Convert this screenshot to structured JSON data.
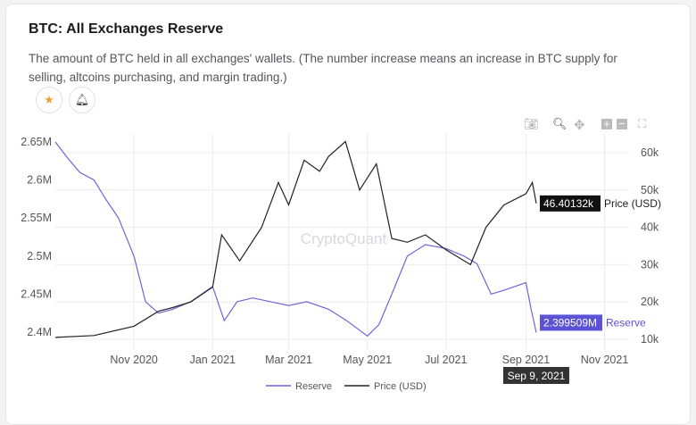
{
  "header": {
    "title": "BTC: All Exchanges Reserve",
    "description": "The amount of BTC held in all exchanges' wallets. (The number increase means an increase in BTC supply for selling, altcoins purchasing, and margin trading.)",
    "favorite_icon": "star-icon",
    "alert_icon": "bell-icon"
  },
  "toolbar": {
    "icons": [
      "camera-icon",
      "zoom-icon",
      "pan-icon",
      "zoom-in-icon",
      "zoom-out-icon",
      "autoscale-icon"
    ]
  },
  "watermark": "CryptoQuant",
  "chart_data": {
    "type": "line",
    "x_ticks": [
      "Nov 2020",
      "Jan 2021",
      "Mar 2021",
      "May 2021",
      "Jul 2021",
      "Sep 2021",
      "Nov 2021"
    ],
    "x_tick_dates": [
      "2020-11-01",
      "2021-01-01",
      "2021-03-01",
      "2021-05-01",
      "2021-07-01",
      "2021-09-01",
      "2021-11-01"
    ],
    "xlim": [
      "2020-09-01",
      "2021-11-20"
    ],
    "y_left": {
      "ticks": [
        "2.4M",
        "2.45M",
        "2.5M",
        "2.55M",
        "2.6M",
        "2.65M"
      ],
      "values": [
        2.4,
        2.45,
        2.5,
        2.55,
        2.6,
        2.65
      ],
      "unit": "M",
      "range": [
        2.385,
        2.655
      ]
    },
    "y_right": {
      "ticks": [
        "10k",
        "20k",
        "30k",
        "40k",
        "50k",
        "60k"
      ],
      "values": [
        10,
        20,
        30,
        40,
        50,
        60
      ],
      "unit": "k",
      "range": [
        8,
        66
      ]
    },
    "grid": true,
    "legend_position": "bottom",
    "series": [
      {
        "name": "Reserve",
        "axis": "left",
        "color": "#6f66d8",
        "x": [
          "2020-09-01",
          "2020-09-10",
          "2020-09-20",
          "2020-10-01",
          "2020-10-10",
          "2020-10-20",
          "2020-11-01",
          "2020-11-10",
          "2020-11-20",
          "2020-12-01",
          "2020-12-15",
          "2021-01-01",
          "2021-01-10",
          "2021-01-20",
          "2021-02-01",
          "2021-02-15",
          "2021-03-01",
          "2021-03-15",
          "2021-04-01",
          "2021-04-15",
          "2021-05-01",
          "2021-05-10",
          "2021-05-20",
          "2021-06-01",
          "2021-06-15",
          "2021-07-01",
          "2021-07-15",
          "2021-07-25",
          "2021-08-05",
          "2021-08-15",
          "2021-09-01",
          "2021-09-05",
          "2021-09-09"
        ],
        "values": [
          2.65,
          2.63,
          2.61,
          2.6,
          2.575,
          2.55,
          2.5,
          2.44,
          2.425,
          2.43,
          2.44,
          2.46,
          2.415,
          2.44,
          2.445,
          2.44,
          2.435,
          2.44,
          2.43,
          2.415,
          2.395,
          2.41,
          2.45,
          2.5,
          2.515,
          2.51,
          2.5,
          2.49,
          2.45,
          2.455,
          2.465,
          2.43,
          2.3995
        ]
      },
      {
        "name": "Price (USD)",
        "axis": "right",
        "color": "#222222",
        "x": [
          "2020-09-01",
          "2020-10-01",
          "2020-11-01",
          "2020-11-20",
          "2020-12-01",
          "2020-12-15",
          "2021-01-01",
          "2021-01-08",
          "2021-01-22",
          "2021-02-08",
          "2021-02-21",
          "2021-03-01",
          "2021-03-13",
          "2021-03-25",
          "2021-04-01",
          "2021-04-14",
          "2021-04-25",
          "2021-05-08",
          "2021-05-20",
          "2021-06-01",
          "2021-06-15",
          "2021-07-01",
          "2021-07-20",
          "2021-08-01",
          "2021-08-15",
          "2021-09-01",
          "2021-09-06",
          "2021-09-09"
        ],
        "values": [
          10.5,
          11,
          13.5,
          17.5,
          18.5,
          20,
          24,
          38,
          31,
          40,
          52,
          46,
          58,
          55,
          59,
          63,
          50,
          57,
          37,
          36,
          38,
          34,
          30,
          40,
          46,
          49,
          52,
          46.40132
        ]
      }
    ],
    "tooltips": {
      "date": "Sep 9, 2021",
      "price_value": "46.40132k",
      "price_label": "Price (USD)",
      "reserve_value": "2.399509M",
      "reserve_label": "Reserve"
    }
  }
}
